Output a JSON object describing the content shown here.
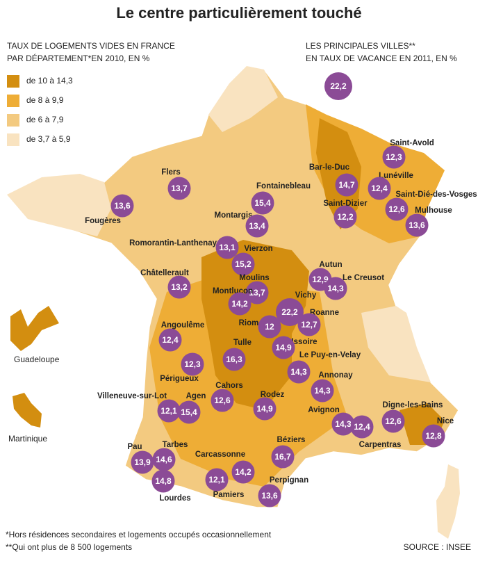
{
  "title": "Le centre particulièrement touché",
  "legend": {
    "heading": [
      "TAUX DE LOGEMENTS VIDES EN FRANCE",
      "PAR DÉPARTEMENT*EN 2010, EN %"
    ],
    "classes": [
      {
        "label": "de 10 à 14,3",
        "color": "#d38e10"
      },
      {
        "label": "de 8 à 9,9",
        "color": "#eead36"
      },
      {
        "label": "de 6 à 7,9",
        "color": "#f3ca80"
      },
      {
        "label": "de 3,7 à 5,9",
        "color": "#f9e3c0"
      }
    ]
  },
  "cities_legend": {
    "heading": [
      "LES PRINCIPALES VILLES**",
      "EN TAUX DE VACANCE EN 2011, EN %"
    ],
    "example": "22,2"
  },
  "cities": [
    {
      "name": "Flers",
      "value": "13,7"
    },
    {
      "name": "Fougères",
      "value": "13,6"
    },
    {
      "name": "Fontainebleau",
      "value": "15,4"
    },
    {
      "name": "Montargis",
      "value": "13,4"
    },
    {
      "name": "Bar-le-Duc",
      "value": "14,7"
    },
    {
      "name": "Saint-Dizier",
      "value": "12,2"
    },
    {
      "name": "Saint-Avold",
      "value": "12,3"
    },
    {
      "name": "Lunéville",
      "value": "12,4"
    },
    {
      "name": "Saint-Dié-des-Vosges",
      "value": "12,6"
    },
    {
      "name": "Mulhouse",
      "value": "13,6"
    },
    {
      "name": "Romorantin-Lanthenay",
      "value": "13,1"
    },
    {
      "name": "Vierzon",
      "value": "15,2"
    },
    {
      "name": "Châtellerault",
      "value": "13,2"
    },
    {
      "name": "Autun",
      "value": "12,9"
    },
    {
      "name": "Le Creusot",
      "value": "14,3"
    },
    {
      "name": "Moulins",
      "value": "13,7"
    },
    {
      "name": "Montluçon",
      "value": "14,2"
    },
    {
      "name": "Vichy",
      "value": "22,2"
    },
    {
      "name": "Roanne",
      "value": "12,7"
    },
    {
      "name": "Riom",
      "value": "12"
    },
    {
      "name": "Angoulême",
      "value": "12,4"
    },
    {
      "name": "Issoire",
      "value": "14,9"
    },
    {
      "name": "Tulle",
      "value": "16,3"
    },
    {
      "name": "Le Puy-en-Velay",
      "value": "14,3"
    },
    {
      "name": "Périgueux",
      "value": "12,3"
    },
    {
      "name": "Annonay",
      "value": "14,3"
    },
    {
      "name": "Cahors",
      "value": "12,6"
    },
    {
      "name": "Villeneuve-sur-Lot",
      "value": "12,1"
    },
    {
      "name": "Agen",
      "value": "15,4"
    },
    {
      "name": "Rodez",
      "value": "14,9"
    },
    {
      "name": "Avignon",
      "value": "14,3"
    },
    {
      "name": "Digne-les-Bains",
      "value": "12,6"
    },
    {
      "name": "Nice",
      "value": "12,8"
    },
    {
      "name": "Carpentras",
      "value": "12,4"
    },
    {
      "name": "Béziers",
      "value": "16,7"
    },
    {
      "name": "Pau",
      "value": "13,9"
    },
    {
      "name": "Tarbes",
      "value": "14,6"
    },
    {
      "name": "Carcassonne",
      "value": "14,2"
    },
    {
      "name": "Perpignan",
      "value": "13,6"
    },
    {
      "name": "Pamiers",
      "value": "12,1"
    },
    {
      "name": "Lourdes",
      "value": "14,8"
    }
  ],
  "overseas": [
    "Guadeloupe",
    "Martinique"
  ],
  "footnotes": [
    "*Hors résidences secondaires et logements occupés occasionnellement",
    "**Qui ont plus de 8 500 logements"
  ],
  "source": "SOURCE : INSEE"
}
